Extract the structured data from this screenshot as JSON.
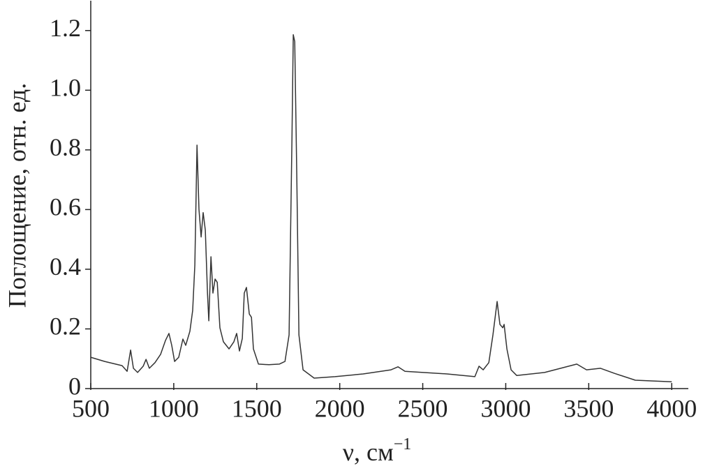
{
  "chart_data": {
    "type": "line",
    "ylabel": "Поглощение, отн. ед.",
    "xlabel": "ν, см",
    "xlabel_superscript": "−1",
    "xlim": [
      500,
      4100
    ],
    "ylim": [
      0,
      1.3
    ],
    "xticks": [
      500,
      1000,
      1500,
      2000,
      2500,
      3000,
      3500,
      4000
    ],
    "yticks": [
      0,
      0.2,
      0.4,
      0.6,
      0.8,
      {
        "value": 1,
        "label": "1.0"
      },
      1.2
    ],
    "series": [
      {
        "color": "#333333",
        "x": [
          500,
          584,
          689,
          719,
          740,
          757,
          782,
          816,
          833,
          853,
          887,
          921,
          950,
          971,
          988,
          1005,
          1030,
          1055,
          1072,
          1097,
          1114,
          1127,
          1140,
          1152,
          1165,
          1177,
          1190,
          1203,
          1211,
          1224,
          1236,
          1249,
          1262,
          1278,
          1299,
          1333,
          1362,
          1379,
          1396,
          1413,
          1425,
          1438,
          1455,
          1468,
          1480,
          1510,
          1573,
          1636,
          1670,
          1695,
          1712,
          1720,
          1729,
          1741,
          1754,
          1779,
          1846,
          1972,
          2141,
          2309,
          2351,
          2393,
          2646,
          2814,
          2839,
          2864,
          2898,
          2923,
          2948,
          2965,
          2982,
          2990,
          3007,
          3032,
          3066,
          3234,
          3428,
          3487,
          3571,
          3655,
          3781,
          4000
        ],
        "values": [
          0.105,
          0.091,
          0.077,
          0.058,
          0.129,
          0.068,
          0.054,
          0.075,
          0.098,
          0.068,
          0.087,
          0.115,
          0.161,
          0.185,
          0.145,
          0.091,
          0.105,
          0.166,
          0.145,
          0.192,
          0.262,
          0.414,
          0.816,
          0.601,
          0.508,
          0.59,
          0.531,
          0.32,
          0.227,
          0.442,
          0.32,
          0.367,
          0.356,
          0.204,
          0.157,
          0.133,
          0.157,
          0.185,
          0.126,
          0.168,
          0.32,
          0.339,
          0.25,
          0.239,
          0.133,
          0.082,
          0.08,
          0.082,
          0.091,
          0.18,
          0.835,
          1.186,
          1.163,
          0.718,
          0.18,
          0.063,
          0.035,
          0.04,
          0.049,
          0.063,
          0.073,
          0.058,
          0.049,
          0.04,
          0.075,
          0.063,
          0.087,
          0.18,
          0.292,
          0.215,
          0.204,
          0.215,
          0.133,
          0.063,
          0.044,
          0.054,
          0.082,
          0.063,
          0.068,
          0.051,
          0.028,
          0.023
        ]
      }
    ]
  }
}
